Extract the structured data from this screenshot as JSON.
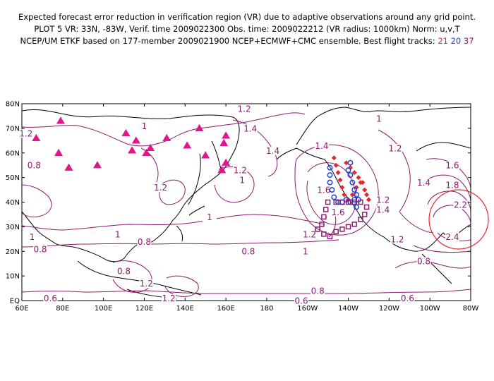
{
  "header": {
    "line1": "Expected forecast error reduction in verification region (VR) due to adaptive observations around any grid point.",
    "line2": "PLOT 5 VR: 33N, -83W, Verif. time 2009022300 Obs. time: 2009022212 (VR radius: 1000km) Norm: u,v,T",
    "line3_prefix": "NCEP/UM ETKF based on 177-member 2009021900 NCEP+ECMWF+CMC ensemble. Best flight tracks:",
    "track_ids": [
      "21",
      "20",
      "37"
    ]
  },
  "map": {
    "lat_labels": [
      "80N",
      "70N",
      "60N",
      "50N",
      "40N",
      "30N",
      "20N",
      "10N",
      "EQ"
    ],
    "lon_labels": [
      "60E",
      "80E",
      "100E",
      "120E",
      "140E",
      "160E",
      "180",
      "160W",
      "140W",
      "120W",
      "100W",
      "80W"
    ],
    "contour_labels": [
      {
        "text": "1.2",
        "lon": 62,
        "lat": 67
      },
      {
        "text": "1.2",
        "lon": 169,
        "lat": 77
      },
      {
        "text": "1",
        "lon": 120,
        "lat": 70
      },
      {
        "text": "1.4",
        "lon": 172,
        "lat": 69
      },
      {
        "text": "1.4",
        "lon": 183,
        "lat": 60
      },
      {
        "text": "1.4",
        "lon": 207,
        "lat": 62
      },
      {
        "text": "1",
        "lon": 235,
        "lat": 73
      },
      {
        "text": "1.2",
        "lon": 243,
        "lat": 61
      },
      {
        "text": "0.8",
        "lon": 66,
        "lat": 54
      },
      {
        "text": "1.2",
        "lon": 167,
        "lat": 52
      },
      {
        "text": "1",
        "lon": 168,
        "lat": 48
      },
      {
        "text": "1.2",
        "lon": 128,
        "lat": 45
      },
      {
        "text": "1.6",
        "lon": 208,
        "lat": 44
      },
      {
        "text": "1.6",
        "lon": 215,
        "lat": 35
      },
      {
        "text": "1.4",
        "lon": 237,
        "lat": 36
      },
      {
        "text": "1.4",
        "lon": 257,
        "lat": 47
      },
      {
        "text": "1.6",
        "lon": 271,
        "lat": 54
      },
      {
        "text": "1.8",
        "lon": 271,
        "lat": 46
      },
      {
        "text": "2.2",
        "lon": 275,
        "lat": 38
      },
      {
        "text": "2.4",
        "lon": 271,
        "lat": 25
      },
      {
        "text": "1.2",
        "lon": 237,
        "lat": 40
      },
      {
        "text": "1.2",
        "lon": 244,
        "lat": 24
      },
      {
        "text": "1.2",
        "lon": 201,
        "lat": 26
      },
      {
        "text": "1",
        "lon": 65,
        "lat": 25
      },
      {
        "text": "1",
        "lon": 107,
        "lat": 26
      },
      {
        "text": "1",
        "lon": 152,
        "lat": 33
      },
      {
        "text": "1",
        "lon": 199,
        "lat": 19
      },
      {
        "text": "0.8",
        "lon": 120,
        "lat": 23
      },
      {
        "text": "0.8",
        "lon": 69,
        "lat": 20
      },
      {
        "text": "0.8",
        "lon": 171,
        "lat": 19
      },
      {
        "text": "0.8",
        "lon": 257,
        "lat": 15
      },
      {
        "text": "0.8",
        "lon": 110,
        "lat": 11
      },
      {
        "text": "0.8",
        "lon": 205,
        "lat": 3
      },
      {
        "text": "0.6",
        "lon": 74,
        "lat": 0
      },
      {
        "text": "0.6",
        "lon": 197,
        "lat": -1
      },
      {
        "text": "0.6",
        "lon": 249,
        "lat": 0
      },
      {
        "text": "1.2",
        "lon": 132,
        "lat": 0
      },
      {
        "text": "1.2",
        "lon": 121,
        "lat": 6
      }
    ]
  },
  "colors": {
    "contour": "#8c1a6f",
    "coast": "#000000",
    "verification_circle": "#e8242d",
    "triangle": "#e0168c",
    "track_21": "#e8242d",
    "track_20": "#1f3fd0",
    "track_37": "#8c1a6f"
  }
}
